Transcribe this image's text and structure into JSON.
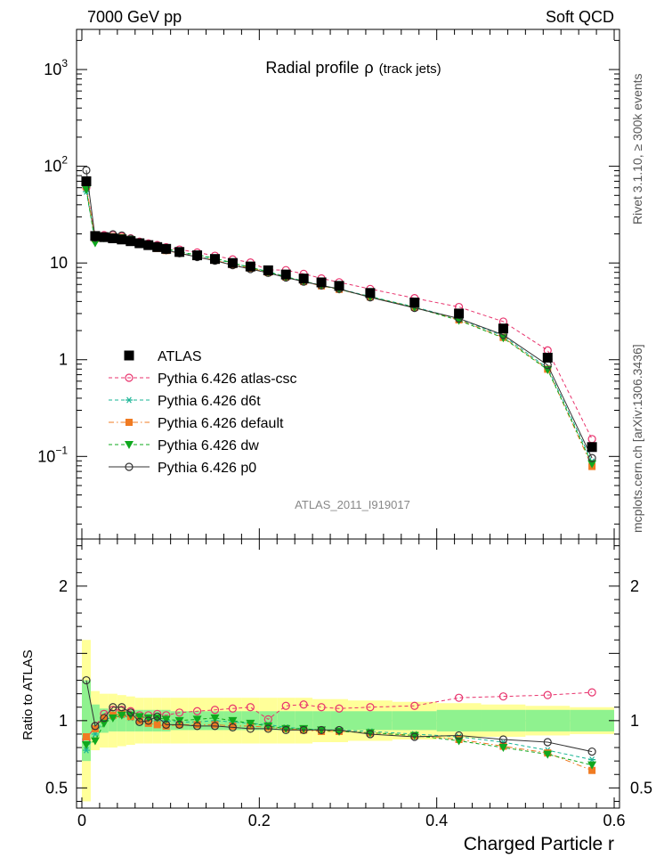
{
  "header": {
    "left": "7000 GeV pp",
    "right": "Soft QCD"
  },
  "side_labels": {
    "rivet": "Rivet 3.1.10, ≥ 300k events",
    "mcplots": "mcplots.cern.ch [arXiv:1306.3436]"
  },
  "chart_data": {
    "type": "line",
    "title": "Radial profile",
    "title_symbol": "ρ",
    "title_suffix": "(track jets)",
    "analysis_label": "ATLAS_2011_I919017",
    "xlabel": "Charged Particle r",
    "ylabel_ratio": "Ratio to ATLAS",
    "xlim": [
      -0.006,
      0.606
    ],
    "ylim_main_log": [
      0.014,
      2600
    ],
    "ylim_ratio": [
      0.35,
      2.35
    ],
    "x_ticks": [
      "0",
      "0.2",
      "0.4",
      "0.6"
    ],
    "x_tick_values": [
      0,
      0.2,
      0.4,
      0.6
    ],
    "y_ticks_main": [
      {
        "value": 0.1,
        "base": "10",
        "exp": "−1"
      },
      {
        "value": 1,
        "base": "1",
        "exp": ""
      },
      {
        "value": 10,
        "base": "10",
        "exp": ""
      },
      {
        "value": 100,
        "base": "10",
        "exp": "2"
      },
      {
        "value": 1000,
        "base": "10",
        "exp": "3"
      }
    ],
    "y_ticks_ratio": [
      {
        "value": 0.5,
        "label": "0.5"
      },
      {
        "value": 1,
        "label": "1"
      },
      {
        "value": 2,
        "label": "2"
      }
    ],
    "x": [
      0.005,
      0.015,
      0.025,
      0.035,
      0.045,
      0.055,
      0.065,
      0.075,
      0.085,
      0.095,
      0.11,
      0.13,
      0.15,
      0.17,
      0.19,
      0.21,
      0.23,
      0.25,
      0.27,
      0.29,
      0.325,
      0.375,
      0.425,
      0.475,
      0.525,
      0.575
    ],
    "bin_edges": [
      0,
      0.01,
      0.02,
      0.03,
      0.04,
      0.05,
      0.06,
      0.07,
      0.08,
      0.09,
      0.1,
      0.12,
      0.14,
      0.16,
      0.18,
      0.2,
      0.22,
      0.24,
      0.26,
      0.28,
      0.3,
      0.35,
      0.4,
      0.45,
      0.5,
      0.55,
      0.6
    ],
    "data_name": "ATLAS",
    "data_values": [
      70,
      19,
      18.5,
      18,
      17.5,
      16.8,
      16,
      15.3,
      14.6,
      14,
      13,
      12,
      11,
      10,
      9.2,
      8.4,
      7.6,
      6.9,
      6.3,
      5.8,
      4.9,
      3.9,
      3.0,
      2.1,
      1.05,
      0.125
    ],
    "band_stat": [
      0.3,
      0.12,
      0.09,
      0.08,
      0.08,
      0.08,
      0.08,
      0.08,
      0.08,
      0.08,
      0.07,
      0.07,
      0.07,
      0.07,
      0.07,
      0.07,
      0.07,
      0.07,
      0.07,
      0.07,
      0.07,
      0.07,
      0.08,
      0.08,
      0.08,
      0.08
    ],
    "band_total": [
      0.6,
      0.22,
      0.2,
      0.2,
      0.19,
      0.18,
      0.17,
      0.17,
      0.17,
      0.17,
      0.17,
      0.17,
      0.17,
      0.17,
      0.17,
      0.17,
      0.17,
      0.17,
      0.16,
      0.16,
      0.15,
      0.14,
      0.13,
      0.12,
      0.11,
      0.1
    ],
    "series": [
      {
        "name": "Pythia 6.426 atlas-csc",
        "color": "#e8336d",
        "marker": "open-circle",
        "dash": "4,3",
        "ratio": [
          0.86,
          0.96,
          1.05,
          1.08,
          1.08,
          1.07,
          1.04,
          1.04,
          1.05,
          1.04,
          1.06,
          1.07,
          1.08,
          1.09,
          1.1,
          1.01,
          1.11,
          1.12,
          1.1,
          1.09,
          1.1,
          1.11,
          1.17,
          1.18,
          1.19,
          1.21
        ]
      },
      {
        "name": "Pythia 6.426 d6t",
        "color": "#1ab596",
        "marker": "asterisk",
        "dash": "4,3",
        "ratio": [
          0.78,
          0.9,
          1.0,
          1.03,
          1.04,
          1.02,
          1.0,
          0.99,
          1.0,
          1.0,
          0.99,
          0.99,
          1.0,
          0.99,
          0.98,
          0.97,
          0.95,
          0.94,
          0.93,
          0.93,
          0.92,
          0.9,
          0.88,
          0.84,
          0.78,
          0.71
        ]
      },
      {
        "name": "Pythia 6.426 default",
        "color": "#f07b22",
        "marker": "filled-square",
        "dash": "6,3,1.5,3",
        "ratio": [
          0.88,
          0.94,
          1.02,
          1.04,
          1.05,
          1.03,
          1.0,
          0.98,
          0.97,
          0.96,
          0.97,
          0.97,
          0.97,
          0.96,
          0.96,
          0.95,
          0.94,
          0.93,
          0.92,
          0.92,
          0.91,
          0.89,
          0.86,
          0.81,
          0.76,
          0.63
        ]
      },
      {
        "name": "Pythia 6.426 dw",
        "color": "#0fa81e",
        "marker": "filled-triangle-down",
        "dash": "4,3",
        "ratio": [
          0.82,
          0.85,
          0.98,
          1.02,
          1.04,
          1.04,
          1.03,
          1.02,
          1.02,
          1.01,
          1.0,
          1.01,
          1.02,
          1.0,
          0.98,
          0.96,
          0.94,
          0.94,
          0.93,
          0.92,
          0.91,
          0.89,
          0.85,
          0.8,
          0.75,
          0.67
        ]
      },
      {
        "name": "Pythia 6.426 p0",
        "color": "#333333",
        "marker": "open-circle",
        "dash": "",
        "ratio": [
          1.3,
          0.96,
          1.02,
          1.1,
          1.1,
          1.06,
          0.99,
          1.0,
          1.03,
          0.97,
          0.97,
          0.96,
          0.96,
          0.95,
          0.94,
          0.94,
          0.93,
          0.93,
          0.93,
          0.93,
          0.9,
          0.88,
          0.89,
          0.86,
          0.84,
          0.77
        ]
      }
    ]
  }
}
